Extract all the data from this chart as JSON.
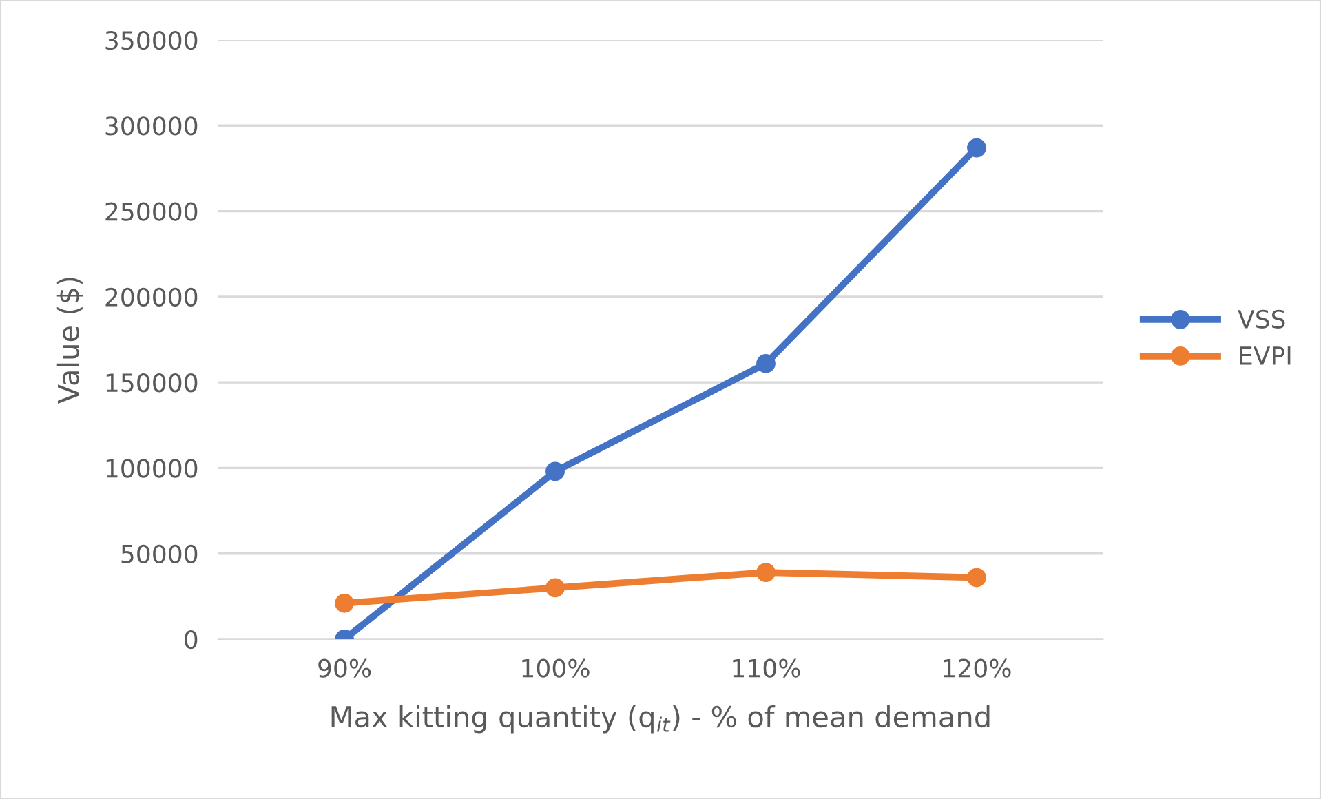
{
  "chart_data": {
    "type": "line",
    "xlabel": "Max kitting quantity (q$_{it}$) - % of mean demand",
    "ylabel": "Value ($)",
    "categories": [
      "90%",
      "100%",
      "110%",
      "120%"
    ],
    "series": [
      {
        "name": "VSS",
        "color": "#4472c4",
        "values": [
          0,
          98000,
          161000,
          287000
        ]
      },
      {
        "name": "EVPI",
        "color": "#ed7d31",
        "values": [
          21000,
          30000,
          39000,
          36000
        ]
      }
    ],
    "ylim": [
      0,
      350000
    ],
    "yticks": [
      0,
      50000,
      100000,
      150000,
      200000,
      250000,
      300000,
      350000
    ],
    "grid": "y",
    "legend": "right",
    "marker": "circle",
    "line_style": "solid"
  }
}
